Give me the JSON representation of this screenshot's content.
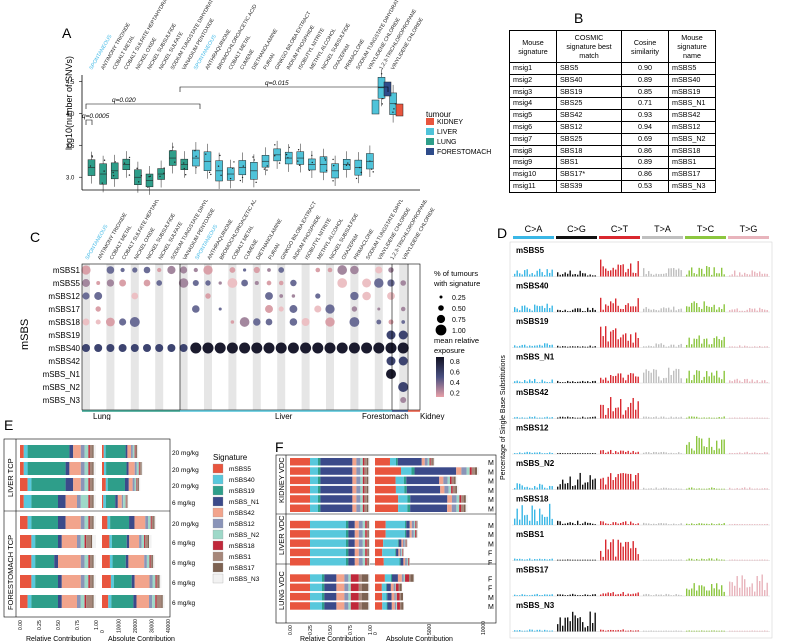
{
  "panels": {
    "a": "A",
    "b": "B",
    "c": "C",
    "d": "D",
    "e": "E",
    "f": "F"
  },
  "panel_a": {
    "ylabel": "log10(number of SNVs)",
    "yticks": [
      "3.0",
      "3.5",
      "4.0",
      "4.5"
    ],
    "compounds": [
      "SPONTANEOUS",
      "ANTIMONY TRIOXIDE",
      "COBALT METAL",
      "COBALT SULFATE HEPTAHYDRATE",
      "NICKEL OXIDE",
      "NICKEL SUBSULFIDE",
      "NICKEL SULFATE",
      "SODIUM TUNGSTATE DIHYDRATE",
      "VANADIUM PENTOXIDE",
      "SPONTANEOUS",
      "ANTHRAQUINONE",
      "BROMOCHLOROACETIC ACID",
      "COBALT METAL",
      "CUMENE",
      "DIETHANOLAMINE",
      "FURAN",
      "GINKGO BILOBA EXTRACT",
      "INDIUM PHOSPHIDE",
      "ISOBUTYL NITRITE",
      "METHYL ALCOHOL",
      "NICKEL SUBSULFIDE",
      "OXAZEPAM",
      "PRIMACLONE",
      "SODIUM TUNGSTATE DIHYDRATE",
      "VINYLIDENE CHLORIDE",
      "1,2,3-TRICHLOROPROPANE",
      "VINYLIDENE CHLORIDE"
    ],
    "legend_title": "tumour",
    "legend": [
      {
        "label": "KIDNEY",
        "color": "#e8553e"
      },
      {
        "label": "LIVER",
        "color": "#4fc3d9"
      },
      {
        "label": "LUNG",
        "color": "#2e9e8a"
      },
      {
        "label": "FORESTOMACH",
        "color": "#2e4b8a"
      }
    ],
    "annotations": [
      "q=0.0005",
      "q=0.020",
      "q=0.015"
    ]
  },
  "panel_b": {
    "headers": [
      "Mouse signature",
      "COSMIC signature best match",
      "Cosine similarity",
      "Mouse signature name"
    ],
    "rows": [
      [
        "msig1",
        "SBS5",
        "0.90",
        "mSBS5"
      ],
      [
        "msig2",
        "SBS40",
        "0.89",
        "mSBS40"
      ],
      [
        "msig3",
        "SBS19",
        "0.85",
        "mSBS19"
      ],
      [
        "msig4",
        "SBS25",
        "0.71",
        "mSBS_N1"
      ],
      [
        "msig5",
        "SBS42",
        "0.93",
        "mSBS42"
      ],
      [
        "msig6",
        "SBS12",
        "0.94",
        "mSBS12"
      ],
      [
        "msig7",
        "SBS25",
        "0.69",
        "mSBS_N2"
      ],
      [
        "msig8",
        "SBS18",
        "0.86",
        "mSBS18"
      ],
      [
        "msig9",
        "SBS1",
        "0.89",
        "mSBS1"
      ],
      [
        "msig10",
        "SBS17*",
        "0.86",
        "mSBS17"
      ],
      [
        "msig11",
        "SBS39",
        "0.53",
        "mSBS_N3"
      ]
    ]
  },
  "panel_c": {
    "ylabel": "mSBS",
    "signatures": [
      "mSBS1",
      "mSBS5",
      "mSBS12",
      "mSBS17",
      "mSBS18",
      "mSBS19",
      "mSBS40",
      "mSBS42",
      "mSBS_N1",
      "mSBS_N2",
      "mSBS_N3"
    ],
    "groups": [
      "Lung",
      "Liver",
      "Forestomach",
      "Kidney"
    ],
    "size_title": "% of tumours with signature",
    "size_values": [
      "0.25",
      "0.50",
      "0.75",
      "1.00"
    ],
    "color_title": "mean relative exposure",
    "color_values": [
      "0.8",
      "0.6",
      "0.4",
      "0.2"
    ]
  },
  "panel_d": {
    "classes": [
      {
        "label": "C>A",
        "color": "#3ab7e6"
      },
      {
        "label": "C>G",
        "color": "#111111"
      },
      {
        "label": "C>T",
        "color": "#d9282f"
      },
      {
        "label": "T>A",
        "color": "#bfbfbf"
      },
      {
        "label": "T>C",
        "color": "#8cc63f"
      },
      {
        "label": "T>G",
        "color": "#e8b4bc"
      }
    ],
    "ylabel": "Percentage of Single Base Substitutions",
    "signatures": [
      "mSBS5",
      "mSBS40",
      "mSBS19",
      "mSBS_N1",
      "mSBS42",
      "mSBS12",
      "mSBS_N2",
      "mSBS18",
      "mSBS1",
      "mSBS17",
      "mSBS_N3"
    ]
  },
  "panel_e": {
    "rows": [
      {
        "label": "LIVER TCP",
        "doses": [
          "20 mg/kg",
          "20 mg/kg",
          "20 mg/kg",
          "6 mg/kg"
        ]
      },
      {
        "label": "FORESTOMACH TCP",
        "doses": [
          "20 mg/kg",
          "6 mg/kg",
          "6 mg/kg",
          "6 mg/kg",
          "6 mg/kg"
        ]
      }
    ],
    "xlabel_rel": "Relative Contribution",
    "xlabel_abs": "Absolute Contribution",
    "rel_ticks": [
      "0.00",
      "0.25",
      "0.50",
      "0.75",
      "1.00"
    ],
    "abs_ticks": [
      "0",
      "10000",
      "20000",
      "30000",
      "40000"
    ],
    "legend_title": "Signature",
    "legend": [
      {
        "label": "mSBS5",
        "color": "#e8553e"
      },
      {
        "label": "mSBS40",
        "color": "#58c8dc"
      },
      {
        "label": "mSBS19",
        "color": "#2e9e8a"
      },
      {
        "label": "mSBS_N1",
        "color": "#3b4a8a"
      },
      {
        "label": "mSBS42",
        "color": "#f2a48c"
      },
      {
        "label": "mSBS12",
        "color": "#8a94b8"
      },
      {
        "label": "mSBS_N2",
        "color": "#9ed8c8"
      },
      {
        "label": "mSBS18",
        "color": "#c0283a"
      },
      {
        "label": "mSBS1",
        "color": "#a6877a"
      },
      {
        "label": "mSBS17",
        "color": "#7d6252"
      },
      {
        "label": "mSBS_N3",
        "color": "#f2f2f2"
      }
    ]
  },
  "panel_f": {
    "groups": [
      {
        "label": "KIDNEY VDC",
        "sex": [
          "M",
          "M",
          "M",
          "M",
          "M",
          "M"
        ]
      },
      {
        "label": "LIVER VDC",
        "sex": [
          "M",
          "M",
          "M",
          "F",
          "F"
        ]
      },
      {
        "label": "LUNG VDC",
        "sex": [
          "F",
          "F",
          "M",
          "M"
        ]
      }
    ],
    "xlabel_rel": "Relative Contribution",
    "xlabel_abs": "Absolute Contribution",
    "rel_ticks": [
      "0.00",
      "0.25",
      "0.50",
      "0.75",
      "1.00"
    ],
    "abs_ticks": [
      "0",
      "5000",
      "10000"
    ]
  }
}
